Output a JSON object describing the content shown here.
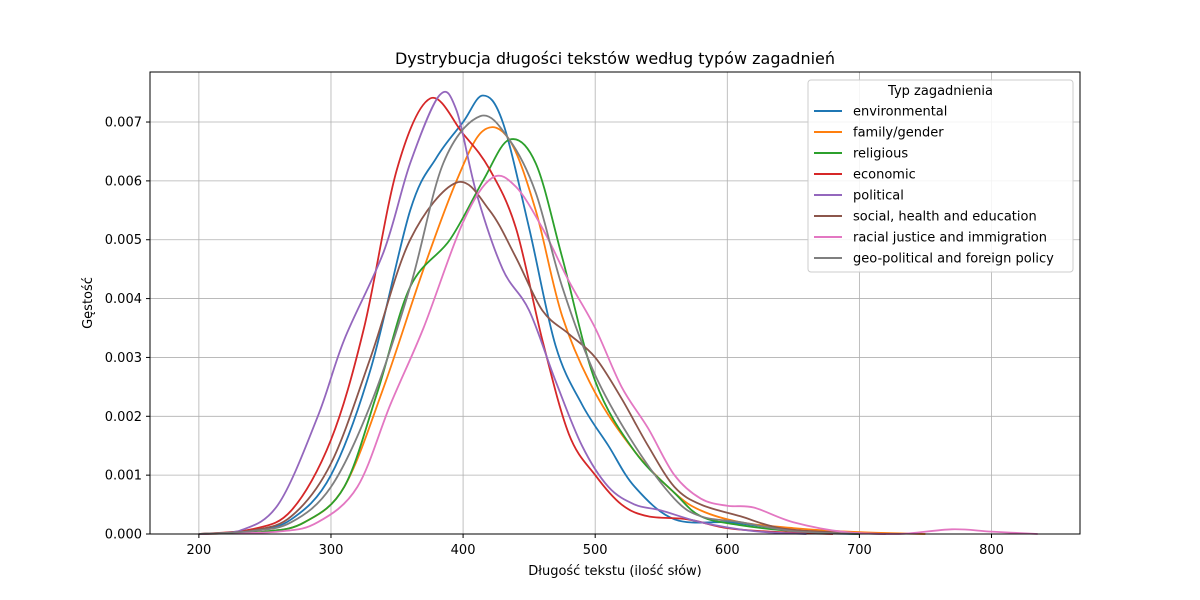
{
  "chart_data": {
    "type": "line",
    "title": "Dystrybucja długości tekstów według typów zagadnień",
    "xlabel": "Długość tekstu (ilość słów)",
    "ylabel": "Gęstość",
    "xlim": [
      163,
      867
    ],
    "ylim": [
      0,
      0.00785
    ],
    "x_ticks": [
      200,
      300,
      400,
      500,
      600,
      700,
      800
    ],
    "y_ticks": [
      0.0,
      0.001,
      0.002,
      0.003,
      0.004,
      0.005,
      0.006,
      0.007
    ],
    "x_tick_labels": [
      "200",
      "300",
      "400",
      "500",
      "600",
      "700",
      "800"
    ],
    "y_tick_labels": [
      "0.000",
      "0.001",
      "0.002",
      "0.003",
      "0.004",
      "0.005",
      "0.006",
      "0.007"
    ],
    "grid": true,
    "legend": {
      "title": "Typ zagadnienia",
      "position": "top-right"
    },
    "series": [
      {
        "name": "environmental",
        "color": "#1f77b4",
        "points": [
          [
            200,
            0
          ],
          [
            240,
            5e-05
          ],
          [
            270,
            0.00025
          ],
          [
            300,
            0.001
          ],
          [
            330,
            0.0028
          ],
          [
            360,
            0.0055
          ],
          [
            380,
            0.0064
          ],
          [
            400,
            0.007
          ],
          [
            415,
            0.00745
          ],
          [
            430,
            0.007
          ],
          [
            450,
            0.0052
          ],
          [
            470,
            0.0032
          ],
          [
            490,
            0.0022
          ],
          [
            510,
            0.0015
          ],
          [
            530,
            0.0008
          ],
          [
            560,
            0.00025
          ],
          [
            600,
            0.0002
          ],
          [
            620,
            0.00015
          ],
          [
            660,
            3e-05
          ],
          [
            700,
            0
          ]
        ]
      },
      {
        "name": "family/gender",
        "color": "#ff7f0e",
        "points": [
          [
            200,
            0
          ],
          [
            250,
            4e-05
          ],
          [
            280,
            0.0002
          ],
          [
            310,
            0.0008
          ],
          [
            340,
            0.0025
          ],
          [
            370,
            0.0045
          ],
          [
            395,
            0.006
          ],
          [
            415,
            0.00685
          ],
          [
            435,
            0.0067
          ],
          [
            455,
            0.0055
          ],
          [
            475,
            0.0037
          ],
          [
            500,
            0.0024
          ],
          [
            530,
            0.0014
          ],
          [
            560,
            0.0007
          ],
          [
            580,
            0.0004
          ],
          [
            610,
            0.0002
          ],
          [
            650,
            0.0001
          ],
          [
            700,
            3e-05
          ],
          [
            750,
            0
          ]
        ]
      },
      {
        "name": "religious",
        "color": "#2ca02c",
        "points": [
          [
            200,
            0
          ],
          [
            250,
            4e-05
          ],
          [
            280,
            0.0002
          ],
          [
            310,
            0.0008
          ],
          [
            335,
            0.0024
          ],
          [
            360,
            0.0042
          ],
          [
            390,
            0.005
          ],
          [
            415,
            0.006
          ],
          [
            435,
            0.0067
          ],
          [
            455,
            0.0063
          ],
          [
            475,
            0.0047
          ],
          [
            500,
            0.0026
          ],
          [
            530,
            0.0014
          ],
          [
            560,
            0.0007
          ],
          [
            580,
            0.0003
          ],
          [
            610,
            0.00015
          ],
          [
            650,
            5e-05
          ],
          [
            700,
            0
          ]
        ]
      },
      {
        "name": "economic",
        "color": "#d62728",
        "points": [
          [
            200,
            0
          ],
          [
            240,
            8e-05
          ],
          [
            270,
            0.0004
          ],
          [
            300,
            0.0016
          ],
          [
            325,
            0.0035
          ],
          [
            350,
            0.0062
          ],
          [
            375,
            0.0074
          ],
          [
            400,
            0.0068
          ],
          [
            420,
            0.0062
          ],
          [
            440,
            0.0052
          ],
          [
            460,
            0.0033
          ],
          [
            480,
            0.0017
          ],
          [
            500,
            0.001
          ],
          [
            520,
            0.0005
          ],
          [
            540,
            0.0003
          ],
          [
            570,
            0.00025
          ],
          [
            600,
            0.0001
          ],
          [
            640,
            3e-05
          ],
          [
            680,
            0
          ]
        ]
      },
      {
        "name": "political",
        "color": "#9467bd",
        "points": [
          [
            200,
            0
          ],
          [
            230,
            5e-05
          ],
          [
            260,
            0.0005
          ],
          [
            290,
            0.002
          ],
          [
            310,
            0.0033
          ],
          [
            340,
            0.0048
          ],
          [
            360,
            0.0063
          ],
          [
            382,
            0.00745
          ],
          [
            395,
            0.0072
          ],
          [
            410,
            0.0058
          ],
          [
            430,
            0.0045
          ],
          [
            450,
            0.0038
          ],
          [
            470,
            0.0026
          ],
          [
            490,
            0.0015
          ],
          [
            510,
            0.0008
          ],
          [
            530,
            0.0005
          ],
          [
            550,
            0.0004
          ],
          [
            580,
            0.0002
          ],
          [
            620,
            5e-05
          ],
          [
            660,
            0
          ]
        ]
      },
      {
        "name": "social, health and education",
        "color": "#8c564b",
        "points": [
          [
            200,
            0
          ],
          [
            240,
            6e-05
          ],
          [
            270,
            0.0003
          ],
          [
            300,
            0.0012
          ],
          [
            330,
            0.003
          ],
          [
            360,
            0.005
          ],
          [
            395,
            0.00597
          ],
          [
            420,
            0.0055
          ],
          [
            440,
            0.0047
          ],
          [
            460,
            0.0038
          ],
          [
            480,
            0.0034
          ],
          [
            500,
            0.003
          ],
          [
            520,
            0.0023
          ],
          [
            540,
            0.0015
          ],
          [
            560,
            0.0008
          ],
          [
            580,
            0.0005
          ],
          [
            610,
            0.0003
          ],
          [
            640,
            0.0001
          ],
          [
            680,
            3e-05
          ],
          [
            720,
            0
          ]
        ]
      },
      {
        "name": "racial justice and immigration",
        "color": "#e377c2",
        "points": [
          [
            200,
            0
          ],
          [
            260,
            4e-05
          ],
          [
            290,
            0.0002
          ],
          [
            320,
            0.0008
          ],
          [
            345,
            0.0022
          ],
          [
            370,
            0.0035
          ],
          [
            400,
            0.0053
          ],
          [
            422,
            0.00605
          ],
          [
            440,
            0.0059
          ],
          [
            460,
            0.0052
          ],
          [
            480,
            0.0043
          ],
          [
            500,
            0.0035
          ],
          [
            520,
            0.0025
          ],
          [
            540,
            0.0018
          ],
          [
            560,
            0.001
          ],
          [
            580,
            0.0006
          ],
          [
            600,
            0.00048
          ],
          [
            620,
            0.00045
          ],
          [
            650,
            0.0002
          ],
          [
            690,
            3e-05
          ],
          [
            730,
            0.0
          ],
          [
            770,
            8e-05
          ],
          [
            800,
            4e-05
          ],
          [
            835,
            0
          ]
        ]
      },
      {
        "name": "geo-political and foreign policy",
        "color": "#7f7f7f",
        "points": [
          [
            200,
            0
          ],
          [
            240,
            5e-05
          ],
          [
            270,
            0.0002
          ],
          [
            300,
            0.0008
          ],
          [
            330,
            0.0022
          ],
          [
            360,
            0.0042
          ],
          [
            385,
            0.0063
          ],
          [
            413,
            0.0071
          ],
          [
            435,
            0.0067
          ],
          [
            455,
            0.0058
          ],
          [
            475,
            0.0042
          ],
          [
            500,
            0.0027
          ],
          [
            530,
            0.0015
          ],
          [
            560,
            0.0006
          ],
          [
            580,
            0.0003
          ],
          [
            610,
            0.0002
          ],
          [
            650,
            5e-05
          ],
          [
            700,
            0
          ]
        ]
      }
    ]
  }
}
